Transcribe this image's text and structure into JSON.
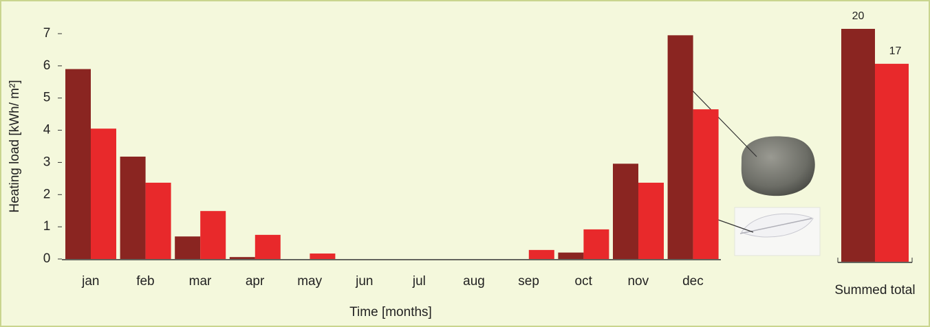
{
  "chart_data": [
    {
      "type": "bar",
      "y_label": "Heating load [kWh/ m²]",
      "x_label": "Time [months]",
      "categories": [
        "jan",
        "feb",
        "mar",
        "apr",
        "may",
        "jun",
        "jul",
        "aug",
        "sep",
        "oct",
        "nov",
        "dec"
      ],
      "series": [
        {
          "color": "#8a2521",
          "values": [
            5.9,
            3.18,
            0.7,
            0.06,
            0,
            0,
            0,
            0,
            0,
            0.2,
            2.96,
            6.95
          ]
        },
        {
          "color": "#e8292b",
          "values": [
            4.05,
            2.37,
            1.49,
            0.75,
            0.17,
            0,
            0,
            0,
            0.28,
            0.92,
            2.37,
            4.65
          ]
        }
      ],
      "ylim": [
        0,
        7
      ],
      "yticks": [
        0,
        1,
        2,
        3,
        4,
        5,
        6,
        7
      ]
    },
    {
      "type": "bar",
      "categories": [
        "Summed total"
      ],
      "series": [
        {
          "color": "#8a2521",
          "values": [
            20
          ]
        },
        {
          "color": "#e8292b",
          "values": [
            17
          ]
        }
      ]
    }
  ]
}
